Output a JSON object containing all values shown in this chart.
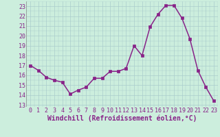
{
  "x": [
    0,
    1,
    2,
    3,
    4,
    5,
    6,
    7,
    8,
    9,
    10,
    11,
    12,
    13,
    14,
    15,
    16,
    17,
    18,
    19,
    20,
    21,
    22,
    23
  ],
  "y": [
    17.0,
    16.5,
    15.8,
    15.5,
    15.3,
    14.1,
    14.5,
    14.8,
    15.7,
    15.7,
    16.4,
    16.4,
    16.7,
    19.0,
    18.0,
    20.9,
    22.2,
    23.1,
    23.1,
    21.8,
    19.7,
    16.5,
    14.8,
    13.4
  ],
  "line_color": "#882288",
  "marker": "s",
  "marker_size": 2.5,
  "linewidth": 1.1,
  "xlabel": "Windchill (Refroidissement éolien,°C)",
  "xlabel_fontsize": 7,
  "ylabel_ticks": [
    13,
    14,
    15,
    16,
    17,
    18,
    19,
    20,
    21,
    22,
    23
  ],
  "xlim": [
    -0.5,
    23.5
  ],
  "ylim": [
    12.8,
    23.5
  ],
  "bg_color": "#cceedd",
  "grid_color": "#aacccc",
  "tick_fontsize": 6,
  "tick_color": "#882288"
}
